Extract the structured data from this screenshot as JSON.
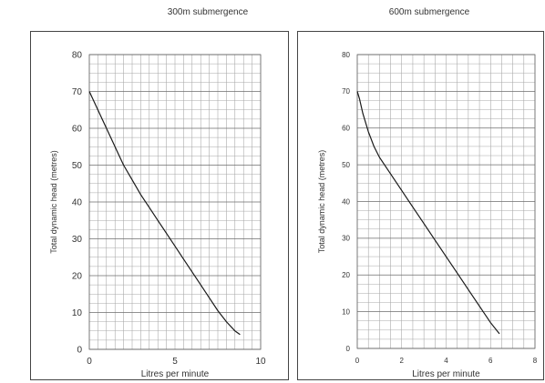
{
  "chart_data": [
    {
      "type": "line",
      "title": "300m submergence",
      "xlabel": "Litres per minute",
      "ylabel": "Total dynamic head (metres)",
      "xlim": [
        0,
        10
      ],
      "ylim": [
        0,
        80
      ],
      "x_ticks": [
        "0",
        "5",
        "10"
      ],
      "y_ticks": [
        "0",
        "10",
        "20",
        "30",
        "40",
        "50",
        "60",
        "70",
        "80"
      ],
      "grid": true,
      "series": [
        {
          "x": [
            0,
            0.5,
            1.0,
            1.5,
            2.0,
            2.5,
            3.0,
            3.5,
            4.0,
            4.5,
            5.0,
            5.5,
            6.0,
            6.5,
            7.0,
            7.5,
            8.0,
            8.5,
            8.8
          ],
          "y": [
            70,
            65,
            60,
            55,
            50,
            46,
            42,
            38.5,
            35,
            31.5,
            28,
            24.5,
            21,
            17.5,
            14,
            10.5,
            7.5,
            5,
            4
          ]
        }
      ]
    },
    {
      "type": "line",
      "title": "600m submergence",
      "xlabel": "Litres per minute",
      "ylabel": "Total dynamic head (metres)",
      "xlim": [
        0,
        8
      ],
      "ylim": [
        0,
        80
      ],
      "x_ticks": [
        "0",
        "2",
        "4",
        "6",
        "8"
      ],
      "y_ticks": [
        "0",
        "10",
        "20",
        "30",
        "40",
        "50",
        "60",
        "70",
        "80"
      ],
      "grid": true,
      "series": [
        {
          "x": [
            0,
            0.1,
            0.25,
            0.5,
            0.75,
            1.0,
            1.5,
            2.0,
            2.5,
            3.0,
            3.5,
            4.0,
            4.5,
            5.0,
            5.5,
            6.0,
            6.4
          ],
          "y": [
            70,
            68,
            64,
            59,
            55,
            52,
            47.5,
            43,
            38.5,
            34,
            29.5,
            25,
            20.5,
            16,
            11.5,
            7,
            4
          ]
        }
      ]
    }
  ]
}
